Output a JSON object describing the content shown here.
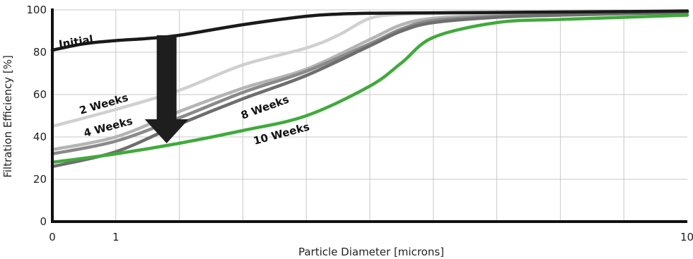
{
  "chart_data": {
    "type": "line",
    "title": "",
    "xlabel": "Particle Diameter [microns]",
    "ylabel": "Filtration Efficiency [%]",
    "xlim": [
      0,
      10
    ],
    "ylim": [
      0,
      100
    ],
    "x_ticks": [
      0,
      1,
      10
    ],
    "x_tick_labels": [
      "0",
      "1",
      "10"
    ],
    "y_ticks": [
      0,
      20,
      40,
      60,
      80,
      100
    ],
    "grid": true,
    "legend": "none",
    "annotation": "downward arrow from the Initial curve to the 10 Weeks curve at x ≈ 1.8",
    "series": [
      {
        "name": "Initial",
        "color": "#1a1a1a",
        "x": [
          0,
          0.5,
          1,
          1.5,
          2,
          3,
          4,
          4.5,
          5,
          6,
          7,
          8,
          9,
          10
        ],
        "y": [
          81,
          84,
          85.5,
          86.5,
          88,
          93,
          97,
          98,
          98.4,
          98.6,
          98.8,
          99,
          99.2,
          99.5
        ]
      },
      {
        "name": "2 Weeks",
        "color": "#d0d0d0",
        "x": [
          0,
          1,
          2,
          3,
          4,
          4.5,
          5,
          5.5,
          6,
          7,
          8,
          9,
          10
        ],
        "y": [
          45,
          53,
          62,
          74,
          82,
          88,
          96,
          98,
          98.3,
          98.5,
          98.7,
          99,
          99.3
        ]
      },
      {
        "name": "4 Weeks",
        "color": "#b4b4b4",
        "x": [
          0,
          1,
          2,
          3,
          4,
          5,
          5.5,
          6,
          7,
          8,
          9,
          10
        ],
        "y": [
          34,
          40,
          52,
          63,
          72,
          86,
          93,
          96,
          97.5,
          98,
          98.5,
          99
        ]
      },
      {
        "name": "8 Weeks",
        "color": "#8a8a8a",
        "x": [
          0,
          1,
          2,
          3,
          4,
          5,
          5.5,
          6,
          7,
          8,
          9,
          10
        ],
        "y": [
          32,
          38,
          49,
          61,
          71,
          84,
          91,
          95,
          97,
          98,
          98.5,
          99
        ]
      },
      {
        "name": "",
        "color": "#6e6e6e",
        "x": [
          0,
          1,
          2,
          3,
          4,
          5,
          5.5,
          6,
          7,
          8,
          9,
          10
        ],
        "y": [
          26,
          33,
          46,
          58,
          69,
          83,
          90,
          94,
          96.5,
          97.5,
          98.2,
          98.8
        ]
      },
      {
        "name": "10 Weeks",
        "color": "#3fab3a",
        "x": [
          0,
          1,
          2,
          3,
          4,
          5,
          5.5,
          6,
          7,
          8,
          9,
          10
        ],
        "y": [
          28,
          32,
          37,
          43,
          50,
          64,
          75,
          87,
          94,
          95.5,
          96.5,
          97.5
        ]
      }
    ]
  }
}
